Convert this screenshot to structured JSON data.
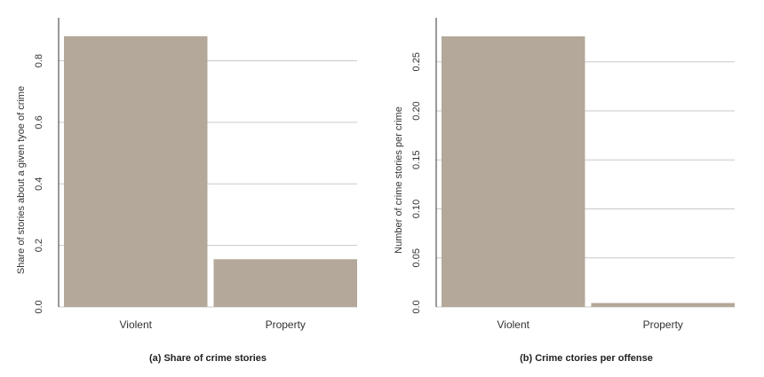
{
  "chart_data": [
    {
      "type": "bar",
      "categories": [
        "Violent",
        "Property"
      ],
      "values": [
        0.88,
        0.155
      ],
      "ylabel": "Share of stories about a given tyoe of crime",
      "ylim": [
        0,
        0.94
      ],
      "yticks": [
        0.0,
        0.2,
        0.4,
        0.6,
        0.8
      ],
      "ytick_labels": [
        "0.0",
        "0.2",
        "0.4",
        "0.6",
        "0.8"
      ],
      "caption": "(a) Share of crime stories",
      "grid": true,
      "bar_color": "#b3a899"
    },
    {
      "type": "bar",
      "categories": [
        "Violent",
        "Property"
      ],
      "values": [
        0.276,
        0.004
      ],
      "ylabel": "Number of crime stories per crime",
      "ylim": [
        0,
        0.295
      ],
      "yticks": [
        0.0,
        0.05,
        0.1,
        0.15,
        0.2,
        0.25
      ],
      "ytick_labels": [
        "0.0",
        "0.05",
        "0.10",
        "0.15",
        "0.20",
        "0.25"
      ],
      "caption": "(b) Crime ctories per offense",
      "grid": true,
      "bar_color": "#b3a899"
    }
  ]
}
